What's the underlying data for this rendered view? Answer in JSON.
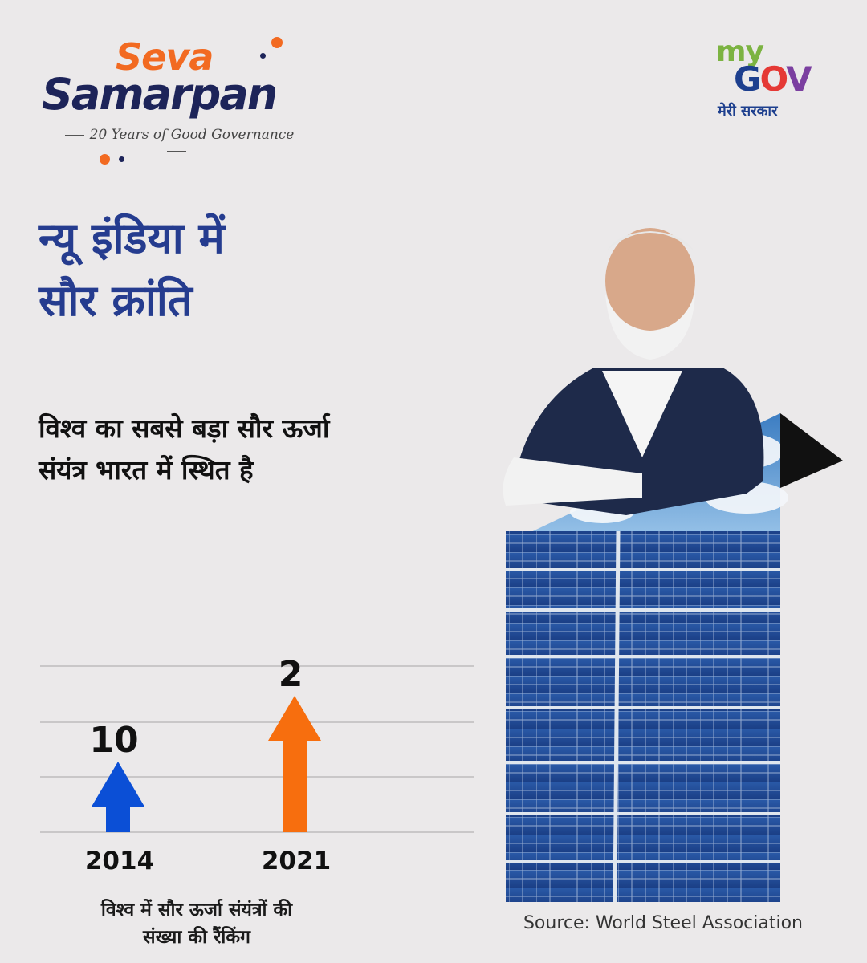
{
  "logo": {
    "seva": "Seva",
    "samarpan": "Samarpan",
    "tagline": "20 Years of Good Governance",
    "colors": {
      "orange": "#f26a21",
      "navy": "#1d2459"
    }
  },
  "mygov": {
    "my": "my",
    "gov": "GOV",
    "subtitle": "मेरी सरकार"
  },
  "title_lines": [
    "न्यू इंडिया में",
    "सौर क्रांति"
  ],
  "subtitle_lines": [
    "विश्व का सबसे बड़ा सौर ऊर्जा",
    "संयंत्र भारत में स्थित है"
  ],
  "chart_data": {
    "type": "bar",
    "categories": [
      "2014",
      "2021"
    ],
    "values": [
      10,
      2
    ],
    "caption_lines": [
      "विश्व में सौर ऊर्जा संयंत्रों की",
      "संख्या की रैंकिंग"
    ],
    "colors": [
      "#0b4fd6",
      "#f76e0e"
    ],
    "grid": true
  },
  "source": "Source: World Steel Association"
}
